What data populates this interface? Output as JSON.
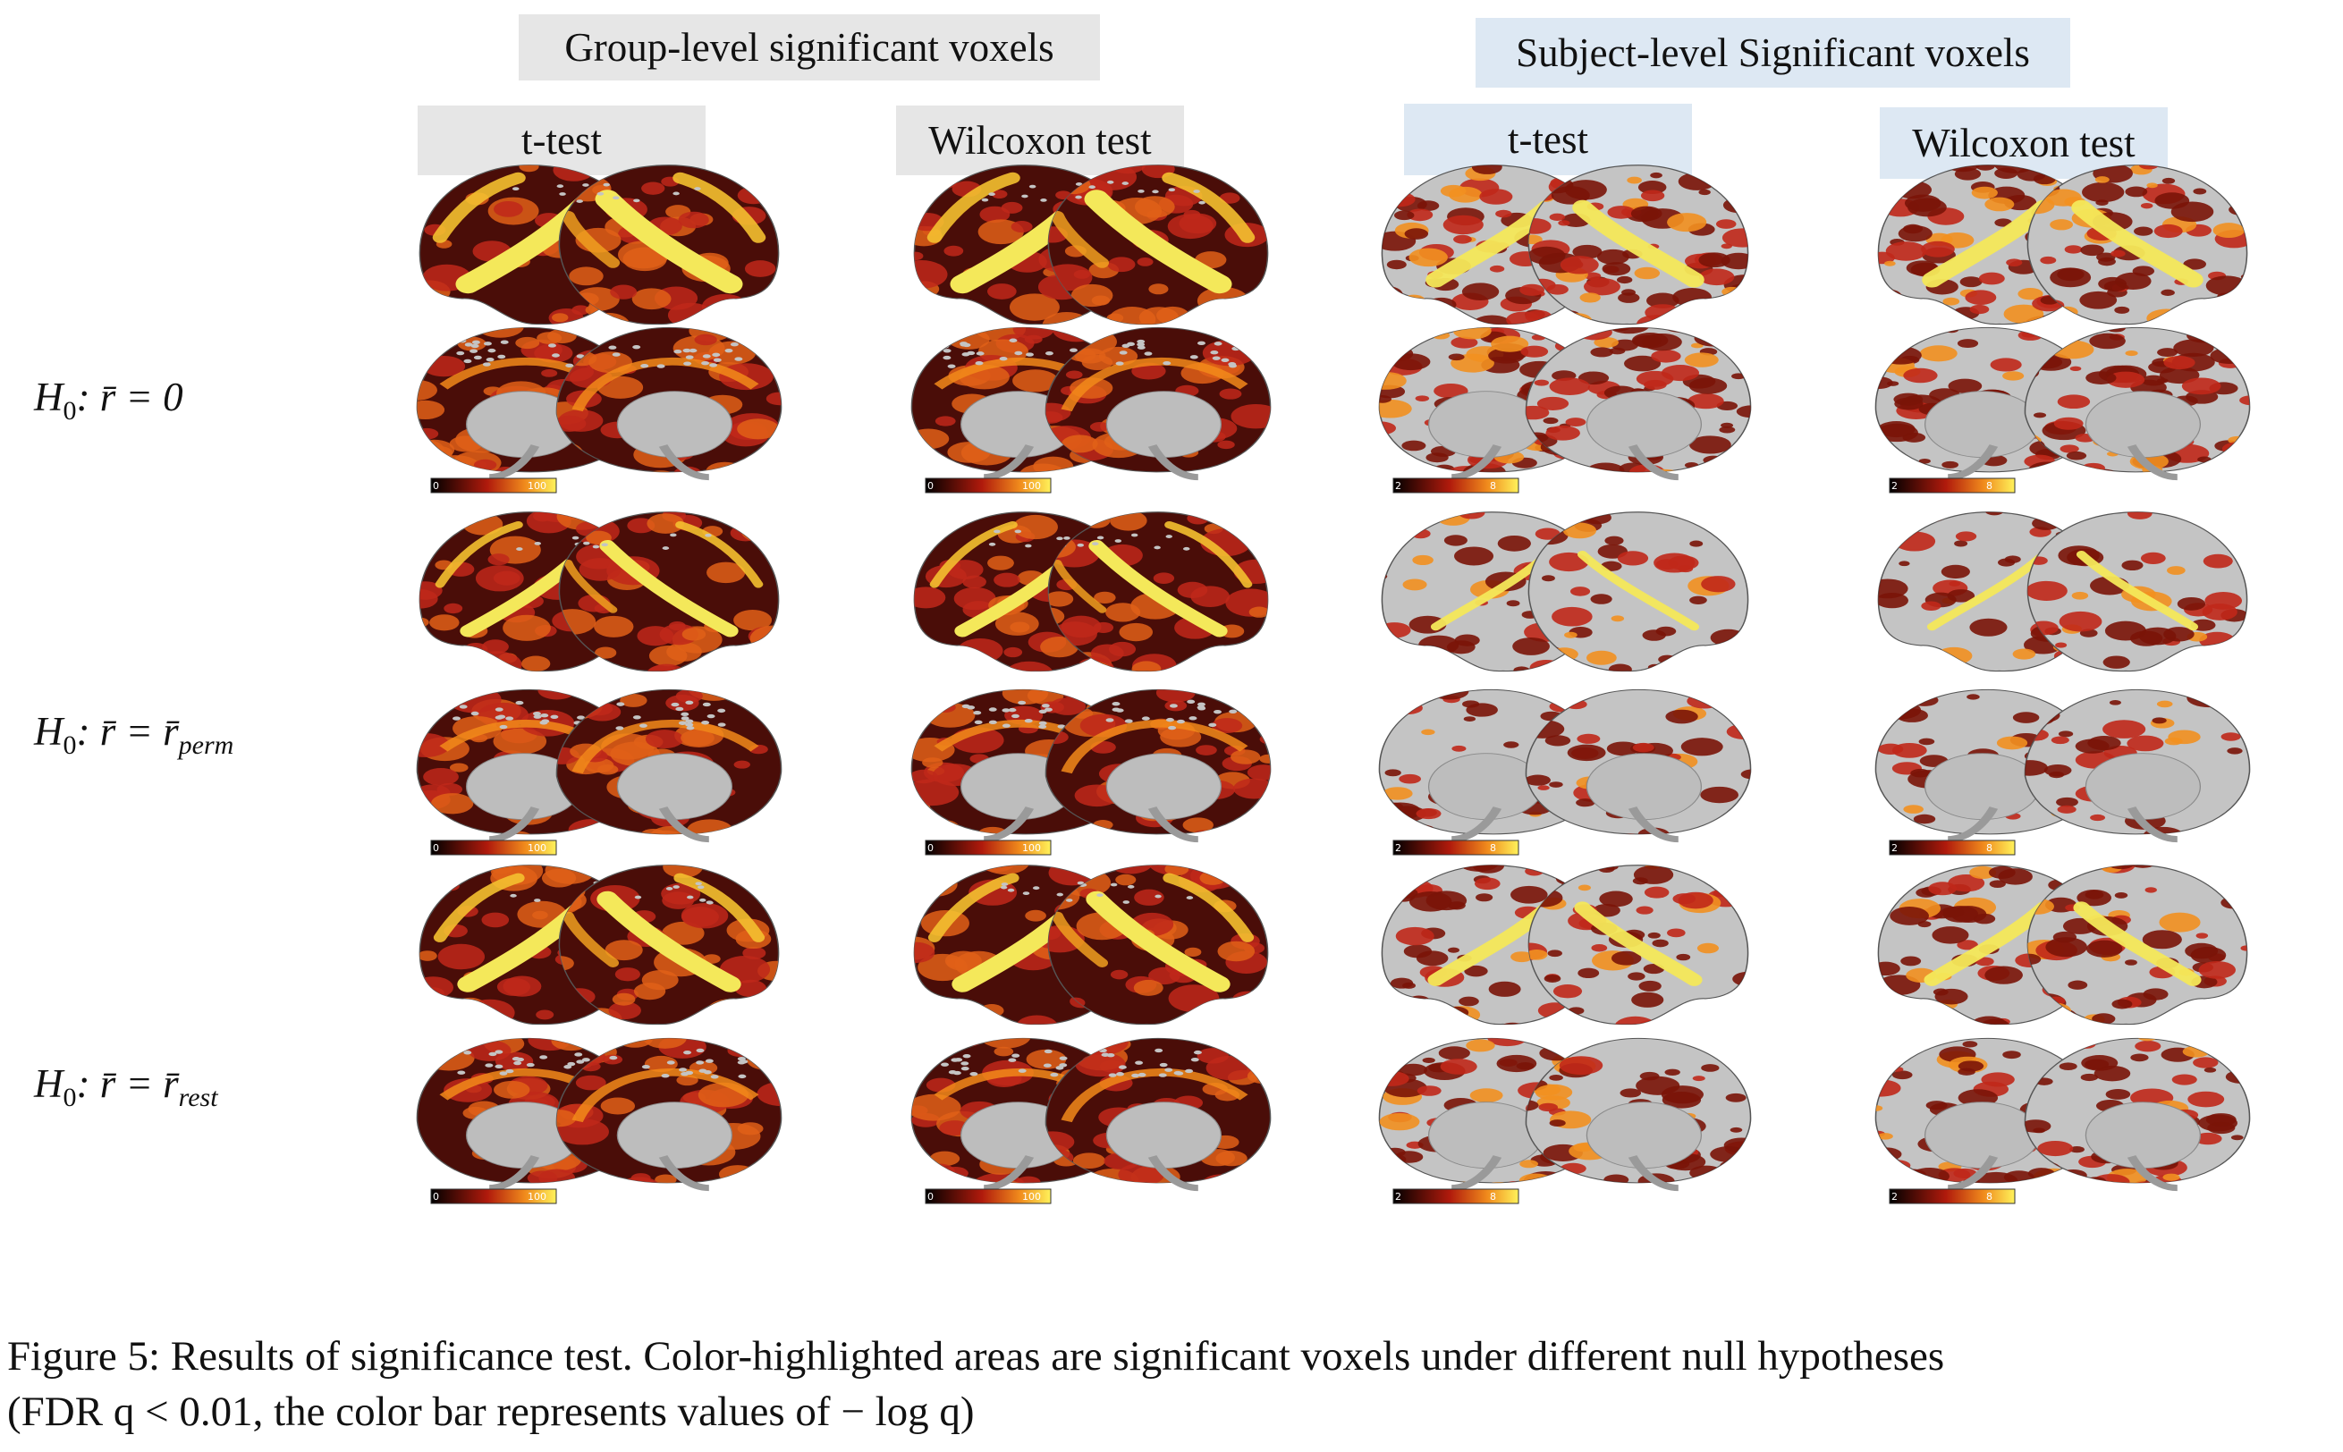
{
  "headers": {
    "group": "Group-level significant voxels",
    "subject": "Subject-level Significant voxels",
    "group_ttest": "t-test",
    "group_wilcoxon": "Wilcoxon test",
    "subject_ttest": "t-test",
    "subject_wilcoxon": "Wilcoxon test"
  },
  "hypotheses": [
    {
      "prefix": "H",
      "sub": "0",
      "body": ": r̄ = 0",
      "suffix_sub": ""
    },
    {
      "prefix": "H",
      "sub": "0",
      "body": ": r̄ = r̄",
      "suffix_sub": "perm"
    },
    {
      "prefix": "H",
      "sub": "0",
      "body": ": r̄ = r̄",
      "suffix_sub": "rest"
    }
  ],
  "colorbars": {
    "group": {
      "min": "0",
      "max": "100"
    },
    "subject": {
      "min": "2",
      "max": "8"
    }
  },
  "caption": {
    "line1": "Figure 5: Results of significance test. Color-highlighted areas are significant voxels under different null hypotheses",
    "line2": "(FDR q < 0.01, the color bar represents values of − log q)"
  },
  "colors": {
    "group_header_bg": "#e6e6e6",
    "subject_header_bg": "#dde8f3",
    "brain_gray": "#c4c4c4",
    "activation_dark": "#4a0d08",
    "activation_red": "#c0281a",
    "activation_yellow": "#f4e85a"
  }
}
